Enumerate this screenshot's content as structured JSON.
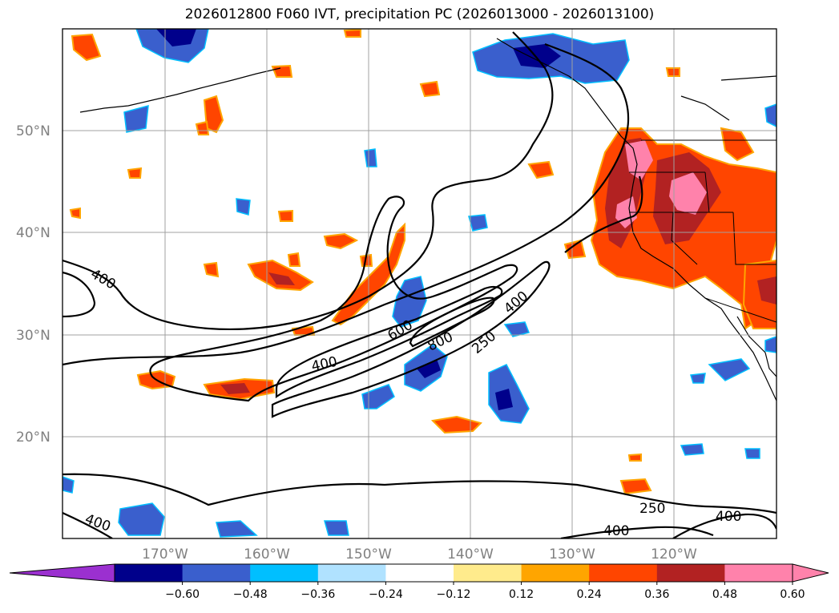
{
  "title": "2026012800 F060 IVT, precipitation PC (2026013000 - 2026013100)",
  "latitude_labels": [
    "50°N",
    "40°N",
    "30°N",
    "20°N"
  ],
  "longitude_labels": [
    "170°W",
    "160°W",
    "150°W",
    "140°W",
    "130°W",
    "120°W"
  ],
  "colorbar": {
    "ticks": [
      "−0.60",
      "−0.48",
      "−0.36",
      "−0.24",
      "−0.12",
      "0.12",
      "0.24",
      "0.36",
      "0.48",
      "0.60"
    ],
    "colors": [
      "#9b30d0",
      "#00008b",
      "#3a5fcd",
      "#00bfff",
      "#b0e2ff",
      "#ffffff",
      "#ffeb8c",
      "#ffa500",
      "#ff4500",
      "#b22222",
      "#ff82ab",
      "#ff82ab"
    ]
  },
  "contour_labels": [
    "400",
    "600",
    "800",
    "250",
    "400",
    "400",
    "400",
    "250",
    "400",
    "400"
  ],
  "colors": {
    "frame": "#000000",
    "grid": "#a0a0a0",
    "tick_text": "#808080",
    "contour": "#000000"
  }
}
